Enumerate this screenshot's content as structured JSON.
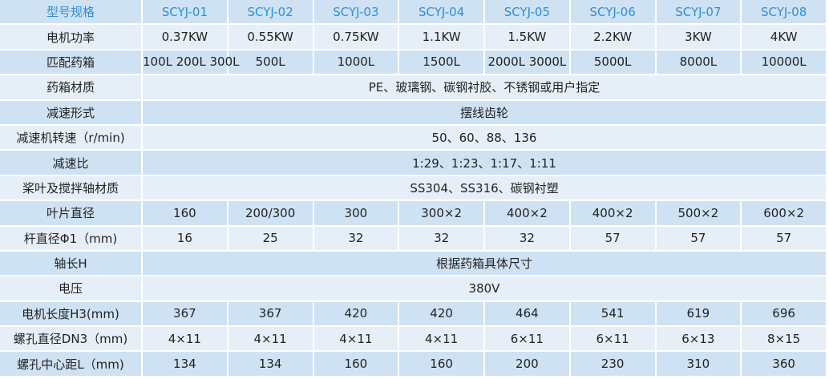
{
  "table": {
    "header": [
      "型号规格",
      "SCYJ-01",
      "SCYJ-02",
      "SCYJ-03",
      "SCYJ-04",
      "SCYJ-05",
      "SCYJ-06",
      "SCYJ-07",
      "SCYJ-08"
    ],
    "rows": [
      {
        "label": "电机功率",
        "cells": [
          "0.37KW",
          "0.55KW",
          "0.75KW",
          "1.1KW",
          "1.5KW",
          "2.2KW",
          "3KW",
          "4KW"
        ]
      },
      {
        "label": "匹配药箱",
        "cells": [
          "100L 200L 300L",
          "500L",
          "1000L",
          "1500L",
          "2000L 3000L",
          "5000L",
          "8000L",
          "10000L"
        ]
      },
      {
        "label": "药箱材质",
        "cells": [
          "PE、玻璃钢、碳钢衬胶、不锈钢或用户指定"
        ]
      },
      {
        "label": "减速形式",
        "cells": [
          "摆线齿轮"
        ]
      },
      {
        "label": "减速机转速（r/min)",
        "cells": [
          "50、60、88、136"
        ]
      },
      {
        "label": "减速比",
        "cells": [
          "1:29、1:23、1:17、1:11"
        ]
      },
      {
        "label": "桨叶及搅拌轴材质",
        "cells": [
          "SS304、SS316、碳钢衬塑"
        ]
      },
      {
        "label": "叶片直径",
        "cells": [
          "160",
          "200/300",
          "300",
          "300×2",
          "400×2",
          "400×2",
          "500×2",
          "600×2"
        ]
      },
      {
        "label": "杆直径Φ1（mm)",
        "cells": [
          "16",
          "25",
          "32",
          "32",
          "32",
          "57",
          "57",
          "57"
        ]
      },
      {
        "label": "轴长H",
        "cells": [
          "根据药箱具体尺寸"
        ]
      },
      {
        "label": "电压",
        "cells": [
          "380V"
        ]
      },
      {
        "label": "电机长度H3(mm)",
        "cells": [
          "367",
          "367",
          "420",
          "420",
          "464",
          "541",
          "619",
          "696"
        ]
      },
      {
        "label": "螺孔直径DN3（mm)",
        "cells": [
          "4×11",
          "4×11",
          "4×11",
          "4×11",
          "6×11",
          "6×11",
          "6×13",
          "8×15"
        ]
      },
      {
        "label": "螺孔中心距L（mm)",
        "cells": [
          "134",
          "134",
          "160",
          "160",
          "200",
          "230",
          "310",
          "360"
        ]
      }
    ]
  }
}
